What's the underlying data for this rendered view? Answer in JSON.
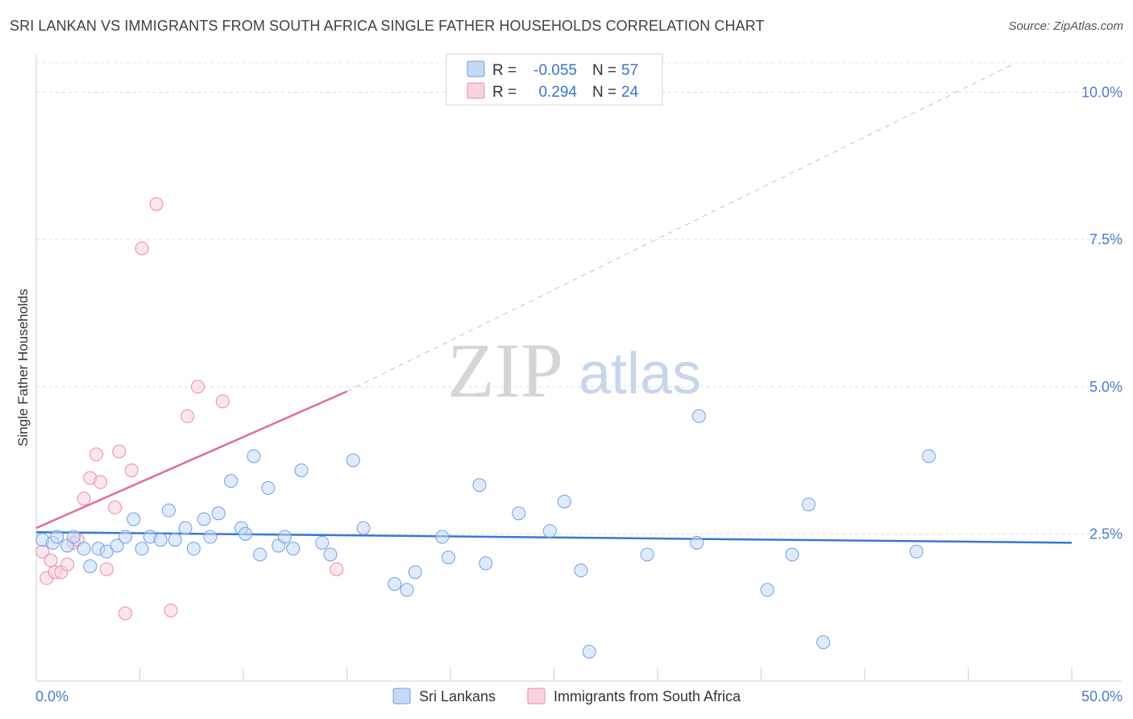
{
  "header": {
    "title": "SRI LANKAN VS IMMIGRANTS FROM SOUTH AFRICA SINGLE FATHER HOUSEHOLDS CORRELATION CHART",
    "source": "Source: ZipAtlas.com"
  },
  "watermark": {
    "zip": "ZIP",
    "atlas": "atlas"
  },
  "legend_box": {
    "rows": [
      {
        "r_label": "R =",
        "r_value": "-0.055",
        "n_label": "N =",
        "n_value": "57"
      },
      {
        "r_label": "R =",
        "r_value": "0.294",
        "n_label": "N =",
        "n_value": "24"
      }
    ]
  },
  "chart_data": {
    "type": "scatter",
    "title": "SRI LANKAN VS IMMIGRANTS FROM SOUTH AFRICA SINGLE FATHER HOUSEHOLDS CORRELATION CHART",
    "xlabel": "",
    "ylabel": "Single Father Households",
    "xlim": [
      0,
      50
    ],
    "ylim": [
      0,
      10.5
    ],
    "x_tick_labels": [
      "0.0%",
      "50.0%"
    ],
    "y_ticks": [
      2.5,
      5.0,
      7.5,
      10.0
    ],
    "y_tick_labels": [
      "2.5%",
      "5.0%",
      "7.5%",
      "10.0%"
    ],
    "colors": {
      "sri_lankans": "#6fa0e4",
      "sri_lankans_fill": "#c5d9f5",
      "south_africa": "#ec8aaa",
      "south_africa_fill": "#f8d2de",
      "sri_lankans_line": "#3a78d4",
      "south_africa_line": "#e36b97"
    },
    "series": [
      {
        "name": "Sri Lankans",
        "r": -0.055,
        "n": 57,
        "trend": {
          "x0": 0,
          "y0": 2.53,
          "x1": 50,
          "y1": 2.35
        },
        "points": [
          [
            0.3,
            2.4
          ],
          [
            0.8,
            2.35
          ],
          [
            1.0,
            2.45
          ],
          [
            1.5,
            2.3
          ],
          [
            1.8,
            2.45
          ],
          [
            2.3,
            2.25
          ],
          [
            2.6,
            1.95
          ],
          [
            3.0,
            2.25
          ],
          [
            3.4,
            2.2
          ],
          [
            3.9,
            2.3
          ],
          [
            4.3,
            2.45
          ],
          [
            4.7,
            2.75
          ],
          [
            5.1,
            2.25
          ],
          [
            5.5,
            2.45
          ],
          [
            6.0,
            2.4
          ],
          [
            6.4,
            2.9
          ],
          [
            6.7,
            2.4
          ],
          [
            7.2,
            2.6
          ],
          [
            7.6,
            2.25
          ],
          [
            8.1,
            2.75
          ],
          [
            8.4,
            2.45
          ],
          [
            8.8,
            2.85
          ],
          [
            9.4,
            3.4
          ],
          [
            9.9,
            2.6
          ],
          [
            10.1,
            2.5
          ],
          [
            10.5,
            3.82
          ],
          [
            10.8,
            2.15
          ],
          [
            11.2,
            3.28
          ],
          [
            11.7,
            2.3
          ],
          [
            12.0,
            2.45
          ],
          [
            12.4,
            2.25
          ],
          [
            12.8,
            3.58
          ],
          [
            13.8,
            2.35
          ],
          [
            14.2,
            2.15
          ],
          [
            15.3,
            3.75
          ],
          [
            15.8,
            2.6
          ],
          [
            17.3,
            1.65
          ],
          [
            17.9,
            1.55
          ],
          [
            18.3,
            1.85
          ],
          [
            19.6,
            2.45
          ],
          [
            19.9,
            2.1
          ],
          [
            21.4,
            3.33
          ],
          [
            21.7,
            2.0
          ],
          [
            23.3,
            2.85
          ],
          [
            24.8,
            2.55
          ],
          [
            25.5,
            3.05
          ],
          [
            26.3,
            1.88
          ],
          [
            26.7,
            0.5
          ],
          [
            29.5,
            2.15
          ],
          [
            31.9,
            2.35
          ],
          [
            32.0,
            4.5
          ],
          [
            35.3,
            1.55
          ],
          [
            36.5,
            2.15
          ],
          [
            37.3,
            3.0
          ],
          [
            38.0,
            0.66
          ],
          [
            42.5,
            2.2
          ],
          [
            43.1,
            3.82
          ]
        ]
      },
      {
        "name": "Immigrants from South Africa",
        "r": 0.294,
        "n": 24,
        "trend": {
          "x0": 0,
          "y0": 2.6,
          "x1": 15,
          "y1": 4.92
        },
        "trend_extension": {
          "x0": 15,
          "y0": 4.92,
          "x1": 47.3,
          "y1": 10.5
        },
        "points": [
          [
            0.3,
            2.2
          ],
          [
            0.5,
            1.75
          ],
          [
            0.7,
            2.05
          ],
          [
            0.9,
            1.85
          ],
          [
            1.2,
            1.85
          ],
          [
            1.5,
            1.98
          ],
          [
            1.8,
            2.35
          ],
          [
            2.0,
            2.4
          ],
          [
            2.3,
            3.1
          ],
          [
            2.6,
            3.45
          ],
          [
            2.9,
            3.85
          ],
          [
            3.1,
            3.38
          ],
          [
            3.4,
            1.9
          ],
          [
            3.8,
            2.95
          ],
          [
            4.0,
            3.9
          ],
          [
            4.3,
            1.15
          ],
          [
            4.6,
            3.58
          ],
          [
            5.1,
            7.35
          ],
          [
            5.8,
            8.1
          ],
          [
            6.5,
            1.2
          ],
          [
            7.3,
            4.5
          ],
          [
            7.8,
            5.0
          ],
          [
            9.0,
            4.75
          ],
          [
            14.5,
            1.9
          ]
        ]
      }
    ],
    "legend": [
      "Sri Lankans",
      "Immigrants from South Africa"
    ]
  }
}
